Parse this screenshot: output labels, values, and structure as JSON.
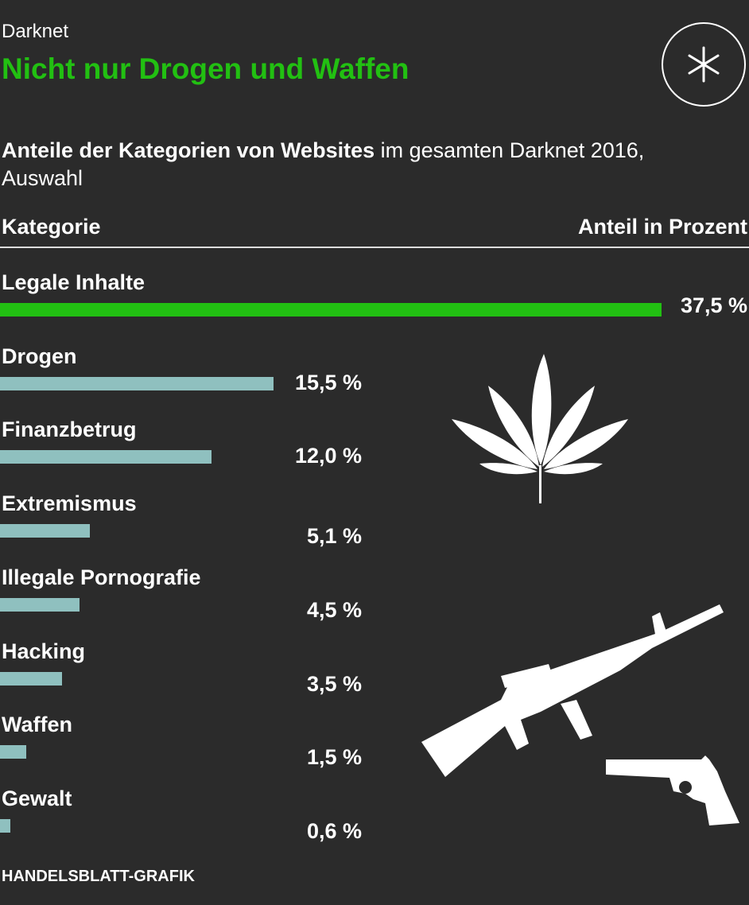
{
  "header": {
    "kicker": "Darknet",
    "title": "Nicht nur Drogen und Waffen",
    "subtitle_bold": "Anteile der Kategorien von Websites",
    "subtitle_rest": " im gesamten Darknet 2016, Auswahl",
    "logo_icon": "asterisk-icon"
  },
  "chart_data": {
    "type": "bar",
    "orientation": "horizontal",
    "column_headers": {
      "category": "Kategorie",
      "value": "Anteil in Prozent"
    },
    "categories": [
      "Legale Inhalte",
      "Drogen",
      "Finanzbetrug",
      "Extremismus",
      "Illegale Pornografie",
      "Hacking",
      "Waffen",
      "Gewalt"
    ],
    "values": [
      37.5,
      15.5,
      12.0,
      5.1,
      4.5,
      3.5,
      1.5,
      0.6
    ],
    "value_labels": [
      "37,5 %",
      "15,5 %",
      "12,0 %",
      "5,1 %",
      "4,5 %",
      "3,5 %",
      "1,5 %",
      "0,6 %"
    ],
    "unit": "%",
    "xlim": [
      0,
      37.5
    ],
    "colors": {
      "highlight": "#22c012",
      "default": "#8fc0bf",
      "background": "#2b2b2b"
    },
    "grid": false,
    "illustrations": [
      "cannabis-leaf-icon",
      "rifle-icon",
      "revolver-icon"
    ]
  },
  "footer": {
    "source": "HANDELSBLATT-GRAFIK"
  }
}
